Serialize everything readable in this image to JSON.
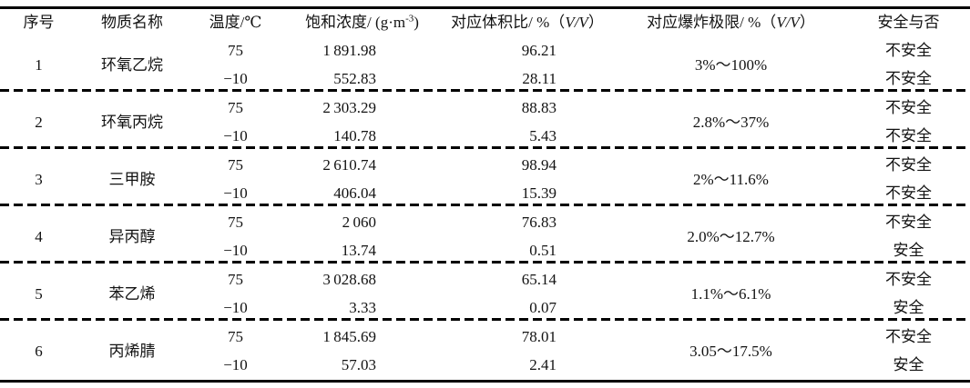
{
  "table": {
    "headers": {
      "no": "序号",
      "substance": "物质名称",
      "temperature": "温度/℃",
      "saturation": {
        "prefix": "饱和浓度/ (g·m",
        "sup": "-3",
        "suffix": ")"
      },
      "volume_ratio": {
        "prefix": "对应体积比/ %（",
        "italic": "V/V",
        "suffix": "）"
      },
      "explosion_limit": {
        "prefix": "对应爆炸极限/ %（",
        "italic": "V/V",
        "suffix": "）"
      },
      "safety": "安全与否"
    },
    "groups": [
      {
        "no": "1",
        "name": "环氧乙烷",
        "limit": "3%～100%",
        "rows": [
          {
            "temp": "75",
            "sat": "1 891.98",
            "vol": "96.21",
            "safe": "不安全"
          },
          {
            "temp": "−10",
            "sat": "552.83",
            "vol": "28.11",
            "safe": "不安全"
          }
        ]
      },
      {
        "no": "2",
        "name": "环氧丙烷",
        "limit": "2.8%～37%",
        "rows": [
          {
            "temp": "75",
            "sat": "2 303.29",
            "vol": "88.83",
            "safe": "不安全"
          },
          {
            "temp": "−10",
            "sat": "140.78",
            "vol": "5.43",
            "safe": "不安全"
          }
        ]
      },
      {
        "no": "3",
        "name": "三甲胺",
        "limit": "2%～11.6%",
        "rows": [
          {
            "temp": "75",
            "sat": "2 610.74",
            "vol": "98.94",
            "safe": "不安全"
          },
          {
            "temp": "−10",
            "sat": "406.04",
            "vol": "15.39",
            "safe": "不安全"
          }
        ]
      },
      {
        "no": "4",
        "name": "异丙醇",
        "limit": "2.0%～12.7%",
        "rows": [
          {
            "temp": "75",
            "sat": "2 060",
            "vol": "76.83",
            "safe": "不安全"
          },
          {
            "temp": "−10",
            "sat": "13.74",
            "vol": "0.51",
            "safe": "安全"
          }
        ]
      },
      {
        "no": "5",
        "name": "苯乙烯",
        "limit": "1.1%～6.1%",
        "rows": [
          {
            "temp": "75",
            "sat": "3 028.68",
            "vol": "65.14",
            "safe": "不安全"
          },
          {
            "temp": "−10",
            "sat": "3.33",
            "vol": "0.07",
            "safe": "安全"
          }
        ]
      },
      {
        "no": "6",
        "name": "丙烯腈",
        "limit": "3.05～17.5%",
        "rows": [
          {
            "temp": "75",
            "sat": "1 845.69",
            "vol": "78.01",
            "safe": "不安全"
          },
          {
            "temp": "−10",
            "sat": "57.03",
            "vol": "2.41",
            "safe": "安全"
          }
        ]
      }
    ]
  }
}
